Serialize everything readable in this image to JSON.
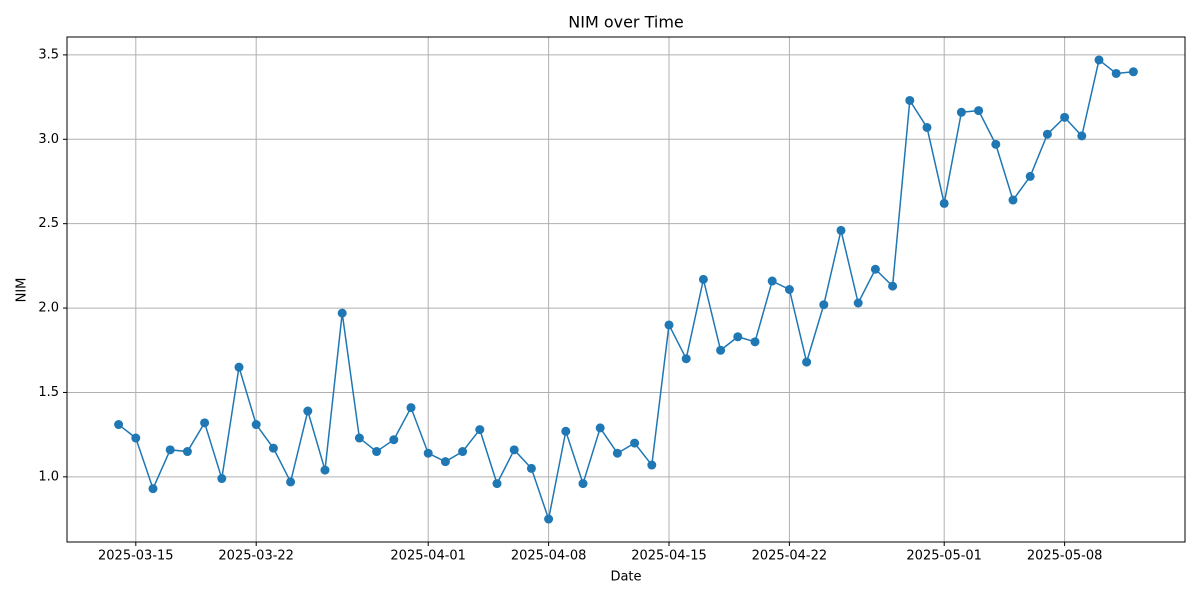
{
  "chart_data": {
    "type": "line",
    "title": "NIM over Time",
    "x_label": "Date",
    "y_label": "NIM",
    "x": [
      "2025-03-14",
      "2025-03-15",
      "2025-03-16",
      "2025-03-17",
      "2025-03-18",
      "2025-03-19",
      "2025-03-20",
      "2025-03-21",
      "2025-03-22",
      "2025-03-23",
      "2025-03-24",
      "2025-03-25",
      "2025-03-26",
      "2025-03-27",
      "2025-03-28",
      "2025-03-29",
      "2025-03-30",
      "2025-03-31",
      "2025-04-01",
      "2025-04-02",
      "2025-04-03",
      "2025-04-04",
      "2025-04-05",
      "2025-04-06",
      "2025-04-07",
      "2025-04-08",
      "2025-04-09",
      "2025-04-10",
      "2025-04-11",
      "2025-04-12",
      "2025-04-13",
      "2025-04-14",
      "2025-04-15",
      "2025-04-16",
      "2025-04-17",
      "2025-04-18",
      "2025-04-19",
      "2025-04-20",
      "2025-04-21",
      "2025-04-22",
      "2025-04-23",
      "2025-04-24",
      "2025-04-25",
      "2025-04-26",
      "2025-04-27",
      "2025-04-28",
      "2025-04-29",
      "2025-04-30",
      "2025-05-01",
      "2025-05-02",
      "2025-05-03",
      "2025-05-04",
      "2025-05-05",
      "2025-05-06",
      "2025-05-07",
      "2025-05-08",
      "2025-05-09",
      "2025-05-10",
      "2025-05-11",
      "2025-05-12"
    ],
    "series": [
      {
        "color": "#1f77b4",
        "values": [
          1.31,
          1.23,
          0.93,
          1.16,
          1.15,
          1.32,
          0.99,
          1.65,
          1.31,
          1.17,
          0.97,
          1.39,
          1.04,
          1.97,
          1.23,
          1.15,
          1.22,
          1.41,
          1.14,
          1.09,
          1.15,
          1.28,
          0.96,
          1.16,
          1.05,
          0.75,
          1.27,
          0.96,
          1.29,
          1.14,
          1.2,
          1.07,
          1.9,
          1.7,
          2.17,
          1.75,
          1.83,
          1.8,
          2.16,
          2.11,
          1.68,
          2.02,
          2.46,
          2.03,
          2.23,
          2.13,
          3.23,
          3.07,
          2.62,
          3.16,
          3.17,
          2.97,
          2.64,
          2.78,
          3.03,
          3.13,
          3.02,
          3.47,
          3.39,
          3.4
        ]
      }
    ],
    "xlim": [
      "2025-03-11",
      "2025-05-15"
    ],
    "xticks": [
      "2025-03-15",
      "2025-03-22",
      "2025-04-01",
      "2025-04-08",
      "2025-04-15",
      "2025-04-22",
      "2025-05-01",
      "2025-05-08"
    ],
    "ylim": [
      0.614,
      3.606
    ],
    "yticks": [
      {
        "value": 1,
        "label": "1.0"
      },
      1.5,
      {
        "value": 2,
        "label": "2.0"
      },
      2.5,
      {
        "value": 3,
        "label": "3.0"
      },
      3.5
    ],
    "grid": true
  }
}
